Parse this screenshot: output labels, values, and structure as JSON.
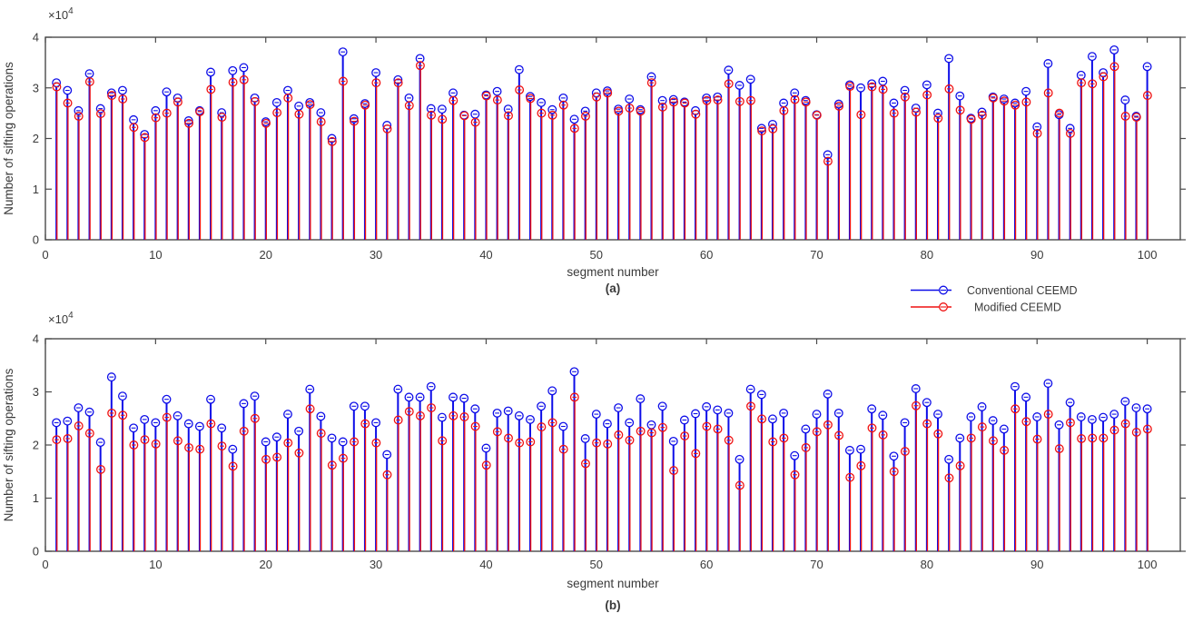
{
  "figure": {
    "background": "#ffffff",
    "axis_color": "#4a4a4a",
    "text_color": "#3a3a3a",
    "conventional_color": "#0d0de8",
    "modified_color": "#ef1010",
    "legend": {
      "position": "below-panel-a-right",
      "items": [
        {
          "label": "Conventional CEEMD",
          "color": "#0d0de8",
          "marker": "circle"
        },
        {
          "label": "Modified CEEMD",
          "color": "#ef1010",
          "marker": "circle"
        }
      ]
    }
  },
  "chart_data": [
    {
      "type": "stem",
      "panel_caption": "(a)",
      "xlabel": "segment number",
      "ylabel": "Number of sifting operations",
      "y_offset_label": "×10⁴",
      "value_unit": "sifting operations × 10^4",
      "xlim": [
        0,
        103
      ],
      "ylim": [
        0,
        4
      ],
      "x_ticks": [
        0,
        10,
        20,
        30,
        40,
        50,
        60,
        70,
        80,
        90,
        100
      ],
      "y_ticks": [
        0,
        1,
        2,
        3,
        4
      ],
      "x_start": 1,
      "x_step": 1,
      "n_points": 100,
      "grid": false,
      "series": [
        {
          "name": "Conventional CEEMD",
          "color": "#0d0de8",
          "values": [
            3.1,
            2.95,
            2.55,
            3.28,
            2.59,
            2.9,
            2.95,
            2.37,
            2.08,
            2.55,
            2.92,
            2.8,
            2.35,
            2.55,
            3.31,
            2.51,
            3.34,
            3.4,
            2.8,
            2.33,
            2.71,
            2.95,
            2.64,
            2.71,
            2.51,
            2.0,
            3.71,
            2.39,
            2.69,
            3.3,
            2.26,
            3.16,
            2.8,
            3.58,
            2.59,
            2.58,
            2.9,
            2.46,
            2.48,
            2.86,
            2.93,
            2.58,
            3.36,
            2.83,
            2.71,
            2.57,
            2.8,
            2.38,
            2.54,
            2.9,
            2.94,
            2.58,
            2.78,
            2.57,
            3.22,
            2.75,
            2.77,
            2.72,
            2.55,
            2.8,
            2.82,
            3.35,
            3.05,
            3.17,
            2.2,
            2.28,
            2.7,
            2.9,
            2.75,
            2.47,
            1.68,
            2.68,
            3.06,
            3.0,
            3.08,
            3.13,
            2.7,
            2.95,
            2.6,
            3.06,
            2.5,
            3.58,
            2.84,
            2.4,
            2.52,
            2.82,
            2.78,
            2.7,
            2.93,
            2.23,
            3.48,
            2.47,
            2.2,
            3.25,
            3.62,
            3.3,
            3.75,
            2.76,
            2.44,
            3.42
          ]
        },
        {
          "name": "Modified CEEMD",
          "color": "#ef1010",
          "values": [
            3.02,
            2.7,
            2.44,
            3.12,
            2.49,
            2.85,
            2.78,
            2.22,
            2.02,
            2.41,
            2.5,
            2.72,
            2.3,
            2.53,
            2.97,
            2.42,
            3.11,
            3.16,
            2.73,
            2.3,
            2.51,
            2.8,
            2.48,
            2.67,
            2.33,
            1.94,
            3.13,
            2.34,
            2.66,
            3.1,
            2.19,
            3.1,
            2.65,
            3.44,
            2.46,
            2.38,
            2.75,
            2.45,
            2.32,
            2.84,
            2.76,
            2.45,
            2.96,
            2.79,
            2.5,
            2.46,
            2.66,
            2.2,
            2.44,
            2.82,
            2.9,
            2.54,
            2.6,
            2.54,
            3.1,
            2.62,
            2.72,
            2.7,
            2.48,
            2.75,
            2.76,
            3.08,
            2.73,
            2.75,
            2.15,
            2.19,
            2.55,
            2.77,
            2.72,
            2.46,
            1.55,
            2.64,
            3.03,
            2.47,
            3.02,
            2.97,
            2.5,
            2.82,
            2.52,
            2.86,
            2.4,
            2.98,
            2.56,
            2.38,
            2.46,
            2.8,
            2.74,
            2.66,
            2.72,
            2.1,
            2.9,
            2.5,
            2.1,
            3.1,
            3.08,
            3.22,
            3.42,
            2.44,
            2.42,
            2.85
          ]
        }
      ]
    },
    {
      "type": "stem",
      "panel_caption": "(b)",
      "xlabel": "segment number",
      "ylabel": "Number of sifting operations",
      "y_offset_label": "×10⁴",
      "value_unit": "sifting operations × 10^4",
      "xlim": [
        0,
        103
      ],
      "ylim": [
        0,
        4
      ],
      "x_ticks": [
        0,
        10,
        20,
        30,
        40,
        50,
        60,
        70,
        80,
        90,
        100
      ],
      "y_ticks": [
        0,
        1,
        2,
        3,
        4
      ],
      "x_start": 1,
      "x_step": 1,
      "n_points": 100,
      "grid": false,
      "series": [
        {
          "name": "Conventional CEEMD",
          "color": "#0d0de8",
          "values": [
            2.42,
            2.45,
            2.7,
            2.62,
            2.05,
            3.28,
            2.92,
            2.32,
            2.48,
            2.42,
            2.86,
            2.55,
            2.4,
            2.35,
            2.86,
            2.32,
            1.92,
            2.78,
            2.92,
            2.06,
            2.15,
            2.58,
            2.26,
            3.05,
            2.54,
            2.13,
            2.06,
            2.73,
            2.73,
            2.42,
            1.82,
            3.05,
            2.9,
            2.9,
            3.1,
            2.52,
            2.9,
            2.88,
            2.68,
            1.94,
            2.6,
            2.64,
            2.55,
            2.48,
            2.73,
            3.02,
            2.35,
            3.38,
            2.12,
            2.58,
            2.4,
            2.7,
            2.42,
            2.87,
            2.38,
            2.73,
            2.07,
            2.47,
            2.59,
            2.72,
            2.66,
            2.6,
            1.73,
            3.05,
            2.95,
            2.49,
            2.6,
            1.8,
            2.3,
            2.58,
            2.96,
            2.6,
            1.9,
            1.92,
            2.68,
            2.56,
            1.79,
            2.42,
            3.06,
            2.8,
            2.58,
            1.73,
            2.13,
            2.53,
            2.72,
            2.46,
            2.3,
            3.1,
            2.9,
            2.53,
            3.16,
            2.38,
            2.8,
            2.53,
            2.48,
            2.52,
            2.58,
            2.82,
            2.7,
            2.68
          ]
        },
        {
          "name": "Modified CEEMD",
          "color": "#ef1010",
          "values": [
            2.1,
            2.12,
            2.36,
            2.22,
            1.54,
            2.6,
            2.56,
            2.0,
            2.1,
            2.02,
            2.52,
            2.08,
            1.95,
            1.92,
            2.4,
            1.98,
            1.6,
            2.26,
            2.5,
            1.73,
            1.77,
            2.04,
            1.85,
            2.68,
            2.22,
            1.62,
            1.75,
            2.06,
            2.4,
            2.04,
            1.44,
            2.47,
            2.63,
            2.55,
            2.7,
            2.08,
            2.55,
            2.53,
            2.35,
            1.62,
            2.25,
            2.13,
            2.04,
            2.06,
            2.34,
            2.42,
            1.92,
            2.9,
            1.65,
            2.04,
            2.02,
            2.19,
            2.09,
            2.26,
            2.23,
            2.33,
            1.52,
            2.17,
            1.84,
            2.35,
            2.3,
            2.09,
            1.24,
            2.73,
            2.49,
            2.06,
            2.13,
            1.44,
            1.95,
            2.25,
            2.38,
            2.18,
            1.39,
            1.61,
            2.32,
            2.19,
            1.5,
            1.88,
            2.74,
            2.4,
            2.21,
            1.38,
            1.61,
            2.13,
            2.34,
            2.08,
            1.9,
            2.68,
            2.44,
            2.11,
            2.58,
            1.93,
            2.42,
            2.12,
            2.13,
            2.13,
            2.28,
            2.4,
            2.24,
            2.3
          ]
        }
      ]
    }
  ]
}
